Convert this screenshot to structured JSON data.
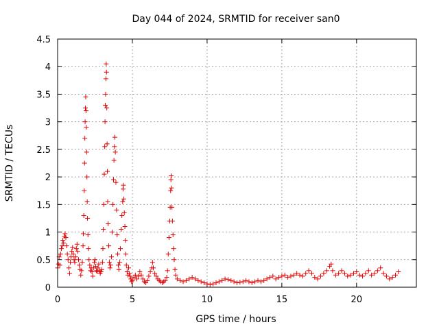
{
  "chart_data": {
    "type": "scatter",
    "title": "Day 044 of 2024, SRMTID for receiver san0",
    "xlabel": "GPS time / hours",
    "ylabel": "SRMTID / TECUs",
    "xlim": [
      0,
      24
    ],
    "ylim": [
      0,
      4.5
    ],
    "x_ticks": [
      0,
      5,
      10,
      15,
      20
    ],
    "x_tick_labels": [
      "0",
      "5",
      "10",
      "15",
      "20"
    ],
    "y_ticks": [
      0,
      0.5,
      1,
      1.5,
      2,
      2.5,
      3,
      3.5,
      4,
      4.5
    ],
    "y_tick_labels": [
      "0",
      "0.5",
      "1",
      "1.5",
      "2",
      "2.5",
      "3",
      "3.5",
      "4",
      "4.5"
    ],
    "grid": true,
    "marker": "+",
    "color": "#e00000",
    "series": [
      {
        "name": "san0",
        "points": [
          [
            0.0,
            0.35
          ],
          [
            0.05,
            0.42
          ],
          [
            0.1,
            0.55
          ],
          [
            0.15,
            0.4
          ],
          [
            0.2,
            0.6
          ],
          [
            0.25,
            0.7
          ],
          [
            0.3,
            0.75
          ],
          [
            0.35,
            0.85
          ],
          [
            0.4,
            0.8
          ],
          [
            0.45,
            0.92
          ],
          [
            0.5,
            0.97
          ],
          [
            0.55,
            0.9
          ],
          [
            0.6,
            0.75
          ],
          [
            0.65,
            0.6
          ],
          [
            0.7,
            0.5
          ],
          [
            0.75,
            0.35
          ],
          [
            0.8,
            0.25
          ],
          [
            0.85,
            0.45
          ],
          [
            0.9,
            0.55
          ],
          [
            0.95,
            0.65
          ],
          [
            1.0,
            0.72
          ],
          [
            1.05,
            0.6
          ],
          [
            1.1,
            0.5
          ],
          [
            1.15,
            0.45
          ],
          [
            1.2,
            0.55
          ],
          [
            1.25,
            0.7
          ],
          [
            1.3,
            0.78
          ],
          [
            1.35,
            0.65
          ],
          [
            1.4,
            0.5
          ],
          [
            1.45,
            0.4
          ],
          [
            1.5,
            0.32
          ],
          [
            1.55,
            0.22
          ],
          [
            1.6,
            0.3
          ],
          [
            1.65,
            0.45
          ],
          [
            1.7,
            0.75
          ],
          [
            1.72,
            0.97
          ],
          [
            1.75,
            1.3
          ],
          [
            1.78,
            1.75
          ],
          [
            1.8,
            2.25
          ],
          [
            1.82,
            2.7
          ],
          [
            1.84,
            3.0
          ],
          [
            1.86,
            3.25
          ],
          [
            1.88,
            3.45
          ],
          [
            1.9,
            3.2
          ],
          [
            1.92,
            2.9
          ],
          [
            1.94,
            2.45
          ],
          [
            1.96,
            2.0
          ],
          [
            1.98,
            1.55
          ],
          [
            2.0,
            1.25
          ],
          [
            2.03,
            0.95
          ],
          [
            2.06,
            0.7
          ],
          [
            2.1,
            0.5
          ],
          [
            2.15,
            0.4
          ],
          [
            2.2,
            0.3
          ],
          [
            2.25,
            0.35
          ],
          [
            2.3,
            0.28
          ],
          [
            2.35,
            0.2
          ],
          [
            2.4,
            0.35
          ],
          [
            2.45,
            0.45
          ],
          [
            2.5,
            0.5
          ],
          [
            2.55,
            0.38
          ],
          [
            2.6,
            0.3
          ],
          [
            2.65,
            0.28
          ],
          [
            2.7,
            0.35
          ],
          [
            2.75,
            0.42
          ],
          [
            2.8,
            0.3
          ],
          [
            2.85,
            0.25
          ],
          [
            2.9,
            0.28
          ],
          [
            2.95,
            0.32
          ],
          [
            3.0,
            0.45
          ],
          [
            3.03,
            0.7
          ],
          [
            3.06,
            1.05
          ],
          [
            3.09,
            1.5
          ],
          [
            3.12,
            2.05
          ],
          [
            3.15,
            2.55
          ],
          [
            3.17,
            3.0
          ],
          [
            3.19,
            3.3
          ],
          [
            3.21,
            3.5
          ],
          [
            3.23,
            3.78
          ],
          [
            3.25,
            4.05
          ],
          [
            3.27,
            3.9
          ],
          [
            3.29,
            3.25
          ],
          [
            3.31,
            2.6
          ],
          [
            3.33,
            2.1
          ],
          [
            3.35,
            1.55
          ],
          [
            3.38,
            1.15
          ],
          [
            3.42,
            0.75
          ],
          [
            3.46,
            0.45
          ],
          [
            3.5,
            0.35
          ],
          [
            3.55,
            0.4
          ],
          [
            3.6,
            0.55
          ],
          [
            3.65,
            1.0
          ],
          [
            3.7,
            1.5
          ],
          [
            3.74,
            1.95
          ],
          [
            3.77,
            2.3
          ],
          [
            3.8,
            2.55
          ],
          [
            3.83,
            2.72
          ],
          [
            3.86,
            2.45
          ],
          [
            3.9,
            1.9
          ],
          [
            3.94,
            1.4
          ],
          [
            3.98,
            0.95
          ],
          [
            4.02,
            0.6
          ],
          [
            4.06,
            0.4
          ],
          [
            4.1,
            0.32
          ],
          [
            4.15,
            0.45
          ],
          [
            4.2,
            0.7
          ],
          [
            4.25,
            1.05
          ],
          [
            4.3,
            1.3
          ],
          [
            4.35,
            1.55
          ],
          [
            4.38,
            1.78
          ],
          [
            4.4,
            1.85
          ],
          [
            4.43,
            1.6
          ],
          [
            4.46,
            1.35
          ],
          [
            4.5,
            1.1
          ],
          [
            4.53,
            0.85
          ],
          [
            4.56,
            0.6
          ],
          [
            4.6,
            0.4
          ],
          [
            4.65,
            0.28
          ],
          [
            4.7,
            0.22
          ],
          [
            4.75,
            0.35
          ],
          [
            4.8,
            0.25
          ],
          [
            4.85,
            0.2
          ],
          [
            4.9,
            0.15
          ],
          [
            4.95,
            0.1
          ],
          [
            5.0,
            0.12
          ],
          [
            5.1,
            0.18
          ],
          [
            5.2,
            0.22
          ],
          [
            5.3,
            0.15
          ],
          [
            5.4,
            0.2
          ],
          [
            5.5,
            0.28
          ],
          [
            5.6,
            0.22
          ],
          [
            5.7,
            0.15
          ],
          [
            5.8,
            0.1
          ],
          [
            5.9,
            0.08
          ],
          [
            6.0,
            0.12
          ],
          [
            6.1,
            0.2
          ],
          [
            6.2,
            0.28
          ],
          [
            6.3,
            0.35
          ],
          [
            6.35,
            0.45
          ],
          [
            6.4,
            0.35
          ],
          [
            6.5,
            0.25
          ],
          [
            6.6,
            0.2
          ],
          [
            6.7,
            0.15
          ],
          [
            6.8,
            0.12
          ],
          [
            6.9,
            0.1
          ],
          [
            7.0,
            0.08
          ],
          [
            7.1,
            0.1
          ],
          [
            7.2,
            0.12
          ],
          [
            7.3,
            0.18
          ],
          [
            7.35,
            0.3
          ],
          [
            7.4,
            0.6
          ],
          [
            7.45,
            0.9
          ],
          [
            7.5,
            1.2
          ],
          [
            7.53,
            1.45
          ],
          [
            7.56,
            1.75
          ],
          [
            7.58,
            1.95
          ],
          [
            7.6,
            2.02
          ],
          [
            7.62,
            1.8
          ],
          [
            7.65,
            1.45
          ],
          [
            7.68,
            1.2
          ],
          [
            7.72,
            0.95
          ],
          [
            7.76,
            0.7
          ],
          [
            7.8,
            0.5
          ],
          [
            7.85,
            0.32
          ],
          [
            7.9,
            0.22
          ],
          [
            8.0,
            0.15
          ],
          [
            8.2,
            0.12
          ],
          [
            8.4,
            0.1
          ],
          [
            8.6,
            0.12
          ],
          [
            8.8,
            0.15
          ],
          [
            9.0,
            0.18
          ],
          [
            9.2,
            0.15
          ],
          [
            9.4,
            0.12
          ],
          [
            9.6,
            0.1
          ],
          [
            9.8,
            0.08
          ],
          [
            10.0,
            0.06
          ],
          [
            10.2,
            0.05
          ],
          [
            10.4,
            0.06
          ],
          [
            10.6,
            0.08
          ],
          [
            10.8,
            0.1
          ],
          [
            11.0,
            0.12
          ],
          [
            11.2,
            0.15
          ],
          [
            11.4,
            0.14
          ],
          [
            11.6,
            0.12
          ],
          [
            11.8,
            0.1
          ],
          [
            12.0,
            0.08
          ],
          [
            12.2,
            0.09
          ],
          [
            12.4,
            0.1
          ],
          [
            12.6,
            0.12
          ],
          [
            12.8,
            0.1
          ],
          [
            13.0,
            0.08
          ],
          [
            13.2,
            0.1
          ],
          [
            13.4,
            0.12
          ],
          [
            13.6,
            0.1
          ],
          [
            13.8,
            0.12
          ],
          [
            14.0,
            0.15
          ],
          [
            14.2,
            0.18
          ],
          [
            14.4,
            0.2
          ],
          [
            14.6,
            0.15
          ],
          [
            14.8,
            0.18
          ],
          [
            15.0,
            0.2
          ],
          [
            15.2,
            0.22
          ],
          [
            15.4,
            0.18
          ],
          [
            15.6,
            0.2
          ],
          [
            15.8,
            0.22
          ],
          [
            16.0,
            0.25
          ],
          [
            16.2,
            0.22
          ],
          [
            16.4,
            0.2
          ],
          [
            16.6,
            0.25
          ],
          [
            16.8,
            0.3
          ],
          [
            17.0,
            0.25
          ],
          [
            17.2,
            0.18
          ],
          [
            17.4,
            0.15
          ],
          [
            17.6,
            0.2
          ],
          [
            17.8,
            0.25
          ],
          [
            18.0,
            0.3
          ],
          [
            18.2,
            0.38
          ],
          [
            18.3,
            0.42
          ],
          [
            18.4,
            0.3
          ],
          [
            18.6,
            0.22
          ],
          [
            18.8,
            0.25
          ],
          [
            19.0,
            0.3
          ],
          [
            19.2,
            0.25
          ],
          [
            19.4,
            0.2
          ],
          [
            19.6,
            0.22
          ],
          [
            19.8,
            0.25
          ],
          [
            20.0,
            0.28
          ],
          [
            20.2,
            0.22
          ],
          [
            20.4,
            0.2
          ],
          [
            20.6,
            0.25
          ],
          [
            20.8,
            0.3
          ],
          [
            21.0,
            0.22
          ],
          [
            21.2,
            0.25
          ],
          [
            21.4,
            0.3
          ],
          [
            21.6,
            0.35
          ],
          [
            21.8,
            0.25
          ],
          [
            22.0,
            0.2
          ],
          [
            22.2,
            0.15
          ],
          [
            22.4,
            0.18
          ],
          [
            22.6,
            0.22
          ],
          [
            22.8,
            0.28
          ]
        ]
      }
    ]
  }
}
